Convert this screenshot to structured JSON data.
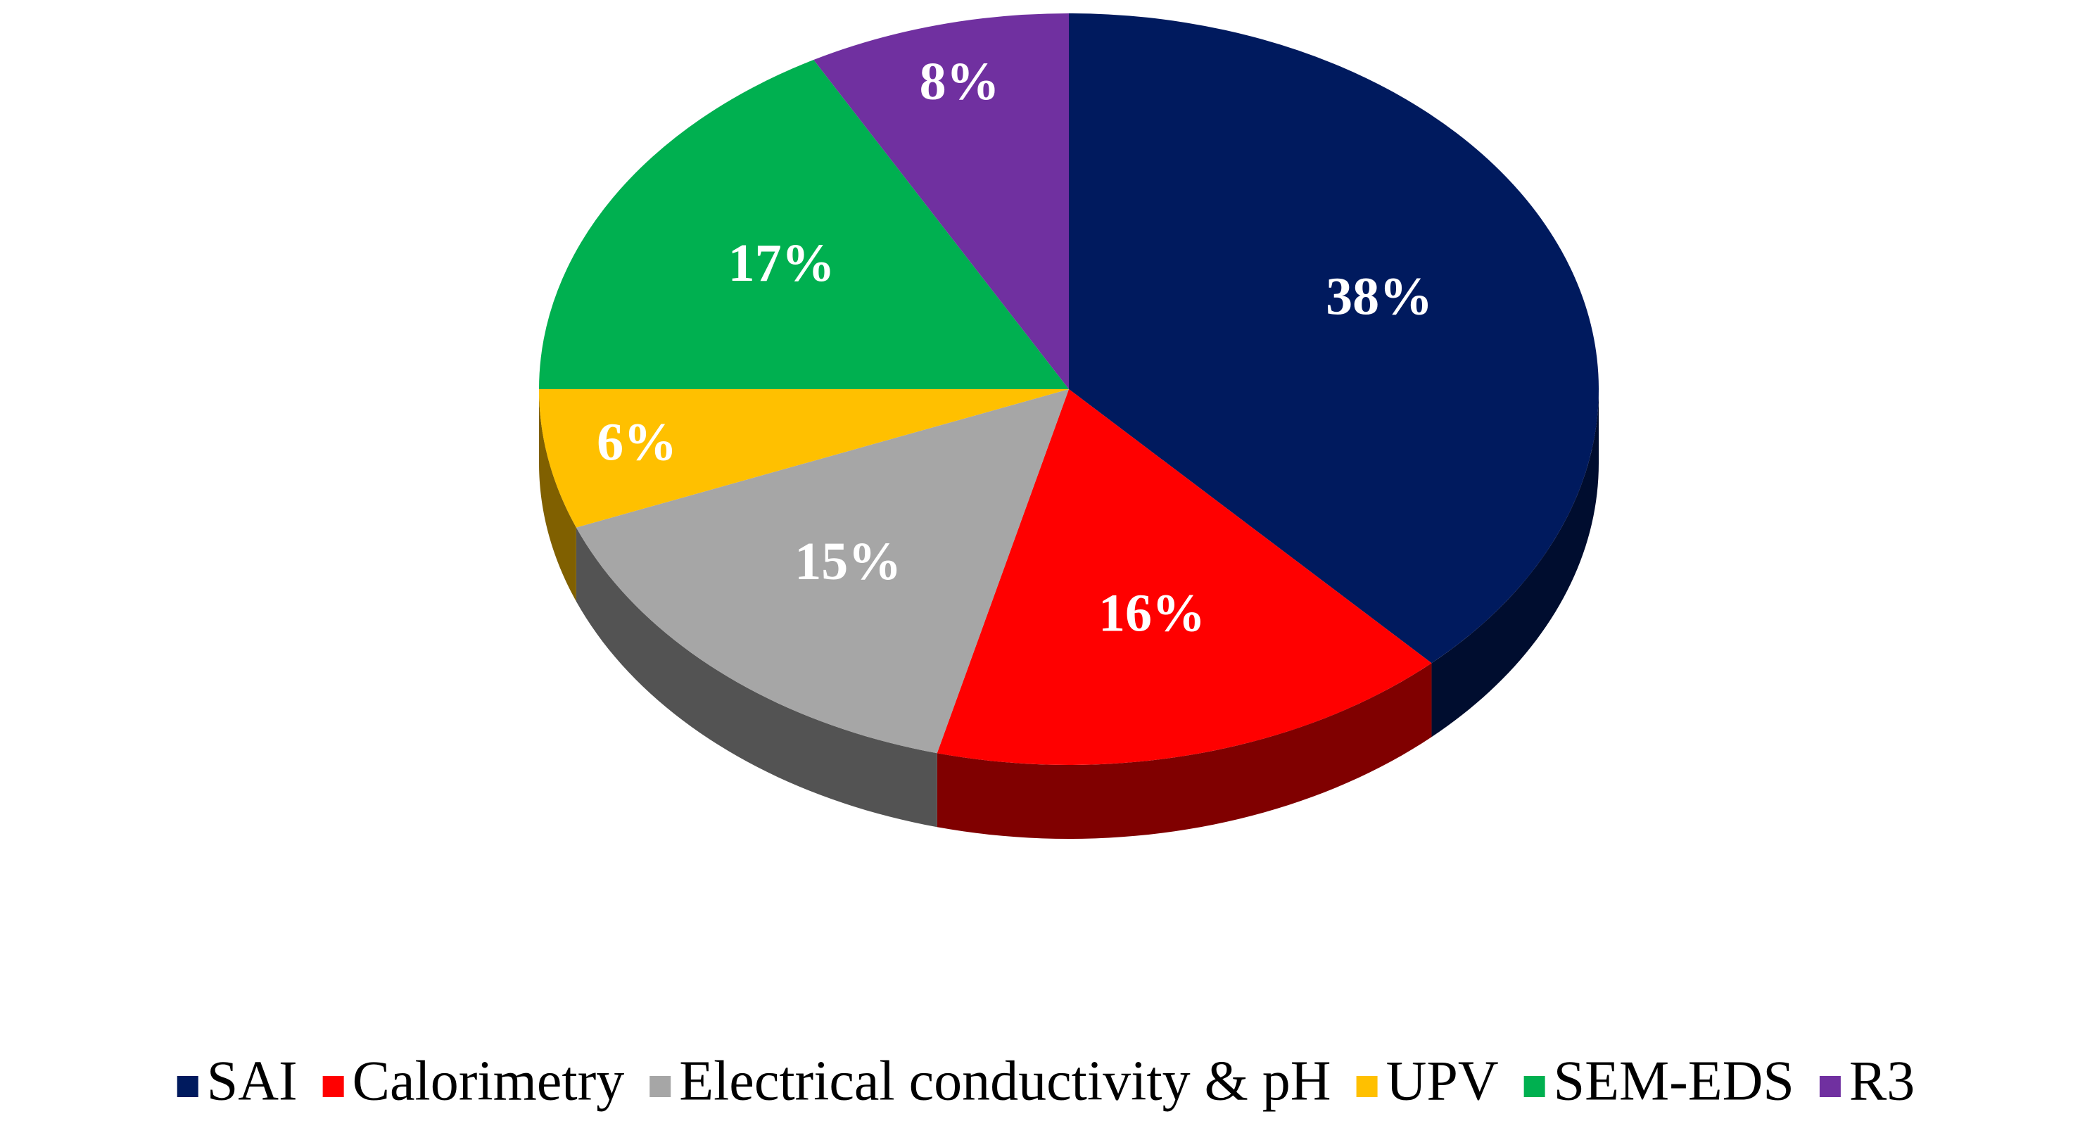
{
  "chart_data": {
    "type": "pie",
    "categories": [
      "SAI",
      "Calorimetry",
      "Electrical conductivity & pH",
      "UPV",
      "SEM-EDS",
      "R3"
    ],
    "values": [
      38,
      16,
      15,
      6,
      17,
      8
    ],
    "value_labels": [
      "38%",
      "16%",
      "15%",
      "6%",
      "17%",
      "8%"
    ],
    "colors": [
      "#001a5e",
      "#ff0000",
      "#a6a6a6",
      "#ffc000",
      "#00b050",
      "#7030a0"
    ],
    "legend": "bottom"
  }
}
